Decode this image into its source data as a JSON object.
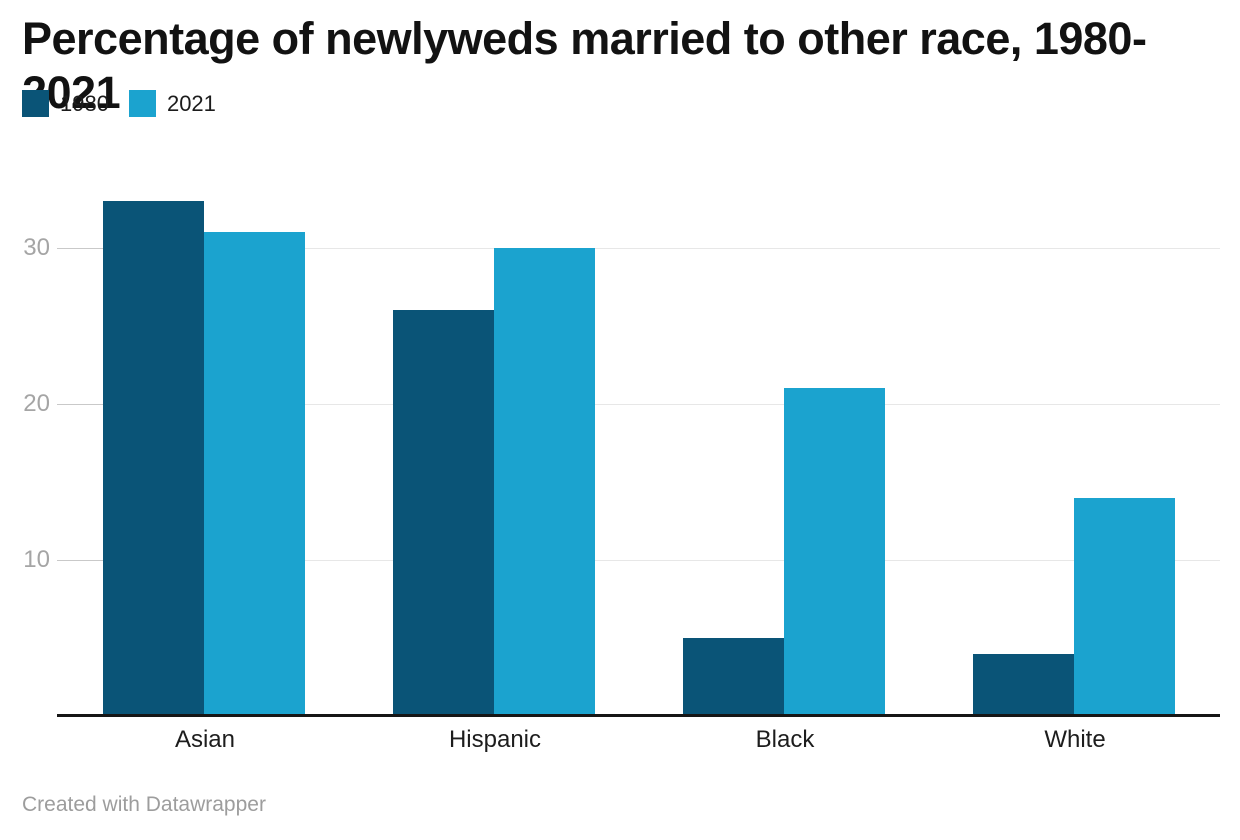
{
  "header": {
    "title": "Percentage of newlyweds married to other race, 1980-2021"
  },
  "footer": {
    "credit": "Created with Datawrapper"
  },
  "colors": {
    "series_1980": "#0a5477",
    "series_2021": "#1ba3cf",
    "gridline": "#e7e7e7",
    "tick": "#c9c9c9",
    "y_tick_label": "#a5a5a5",
    "x_label": "#1d1d1d",
    "baseline": "#161616",
    "title": "#121212",
    "credit": "#9d9d9d",
    "background": "#ffffff"
  },
  "chart_data": {
    "type": "bar",
    "title": "Percentage of newlyweds married to other race, 1980-2021",
    "categories": [
      "Asian",
      "Hispanic",
      "Black",
      "White"
    ],
    "series": [
      {
        "name": "1980",
        "color": "#0a5477",
        "values": [
          33,
          26,
          5,
          4
        ]
      },
      {
        "name": "2021",
        "color": "#1ba3cf",
        "values": [
          31,
          30,
          21,
          14
        ]
      }
    ],
    "xlabel": "",
    "ylabel": "",
    "unit": "percent",
    "yticks": [
      10,
      20,
      30
    ],
    "ylim": [
      0,
      35
    ],
    "grid": true,
    "legend_position": "top-left",
    "credit": "Created with Datawrapper"
  }
}
